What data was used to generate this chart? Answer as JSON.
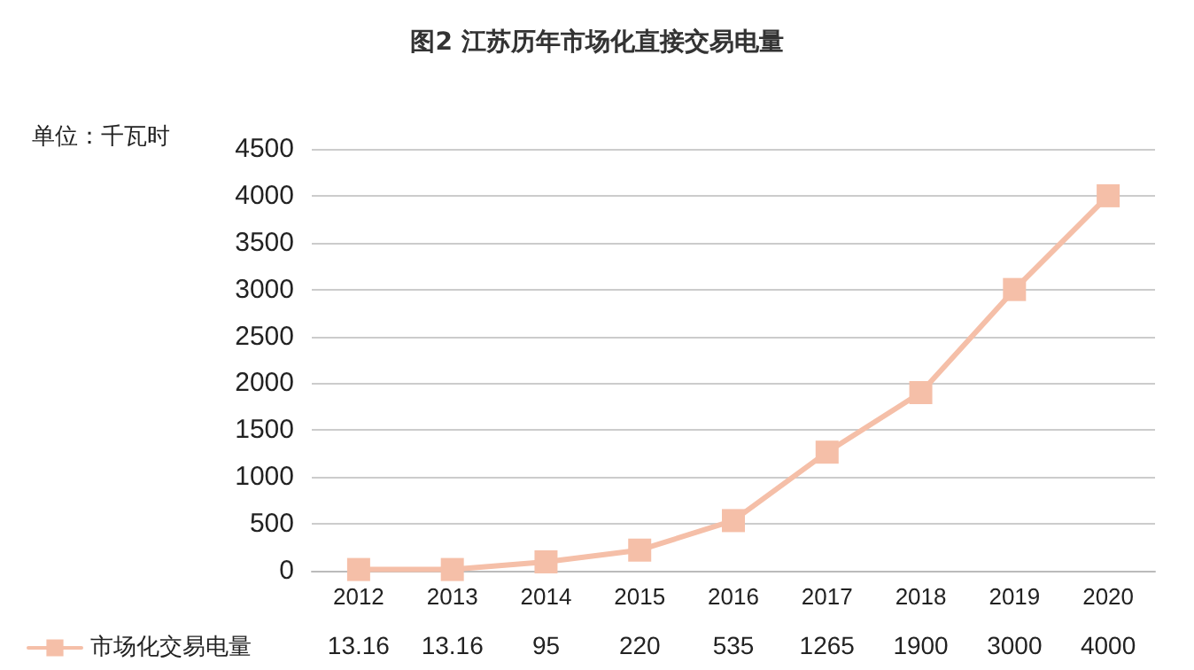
{
  "chart_data": {
    "type": "line",
    "title": "图2 江苏历年市场化直接交易电量",
    "ylabel": "单位：千瓦时",
    "categories": [
      "2012",
      "2013",
      "2014",
      "2015",
      "2016",
      "2017",
      "2018",
      "2019",
      "2020"
    ],
    "series": [
      {
        "name": "市场化交易电量",
        "color": "#f5bfa8",
        "values": [
          13.16,
          13.16,
          95,
          220,
          535,
          1265,
          1900,
          3000,
          4000
        ]
      }
    ],
    "ylim": [
      0,
      4500
    ],
    "yticks": [
      0,
      500,
      1000,
      1500,
      2000,
      2500,
      3000,
      3500,
      4000,
      4500
    ],
    "grid": "y",
    "legend": "bottom left",
    "marker": "square",
    "line_style": "solid",
    "data_labels": true
  }
}
